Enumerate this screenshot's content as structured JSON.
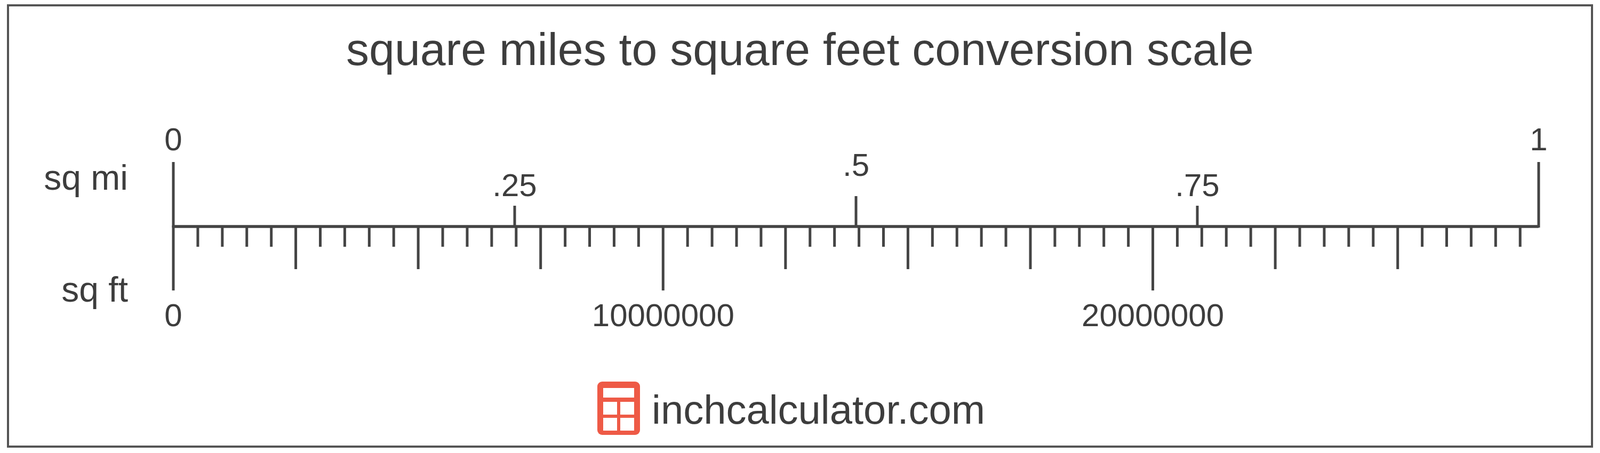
{
  "chart_data": {
    "type": "conversion_scale",
    "title": "square miles to square feet conversion scale",
    "source": "inchcalculator.com",
    "scales": [
      {
        "name": "sq mi",
        "xlim": [
          0,
          1
        ],
        "xticks": [
          0,
          {
            "value": 0.25,
            "label": ".25"
          },
          {
            "value": 0.5,
            "label": ".5"
          },
          {
            "value": 0.75,
            "label": ".75"
          },
          1
        ]
      },
      {
        "name": "sq ft",
        "xlim": [
          0,
          27878400
        ],
        "xticks": [
          0,
          10000000,
          20000000
        ],
        "mid_ticks": [
          2500000,
          5000000,
          7500000,
          12500000,
          15000000,
          17500000,
          22500000,
          25000000
        ],
        "minor_ticks": [
          500000,
          1000000,
          1500000,
          2000000,
          3000000,
          3500000,
          4000000,
          4500000,
          5500000,
          6000000,
          6500000,
          7000000,
          8000000,
          8500000,
          9000000,
          9500000,
          10500000,
          11000000,
          11500000,
          12000000,
          13000000,
          13500000,
          14000000,
          14500000,
          15500000,
          16000000,
          16500000,
          17000000,
          18000000,
          18500000,
          19000000,
          19500000,
          20500000,
          21000000,
          21500000,
          22000000,
          23000000,
          23500000,
          24000000,
          24500000,
          25500000,
          26000000,
          26500000,
          27000000,
          27500000
        ]
      }
    ]
  }
}
